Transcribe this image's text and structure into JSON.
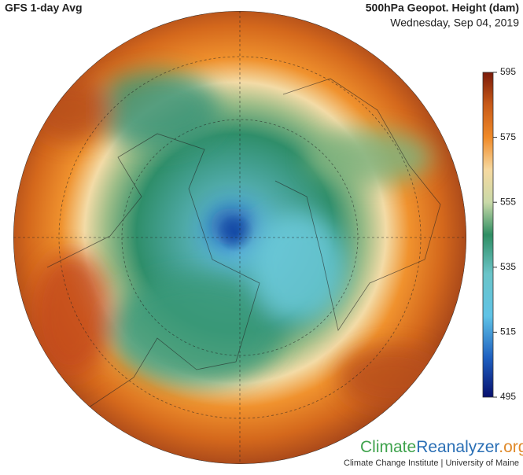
{
  "header": {
    "title": "GFS 1-day Avg",
    "variable": "500hPa Geopot. Height (dam)",
    "date": "Wednesday, Sep 04, 2019"
  },
  "colorbar": {
    "lim": [
      495,
      595
    ],
    "ticks": [
      595,
      575,
      555,
      535,
      515,
      495
    ]
  },
  "branding": {
    "name_parts": [
      "Climate",
      "Reanalyzer",
      ".org"
    ],
    "subtitle": "Climate Change Institute | University of Maine"
  }
}
